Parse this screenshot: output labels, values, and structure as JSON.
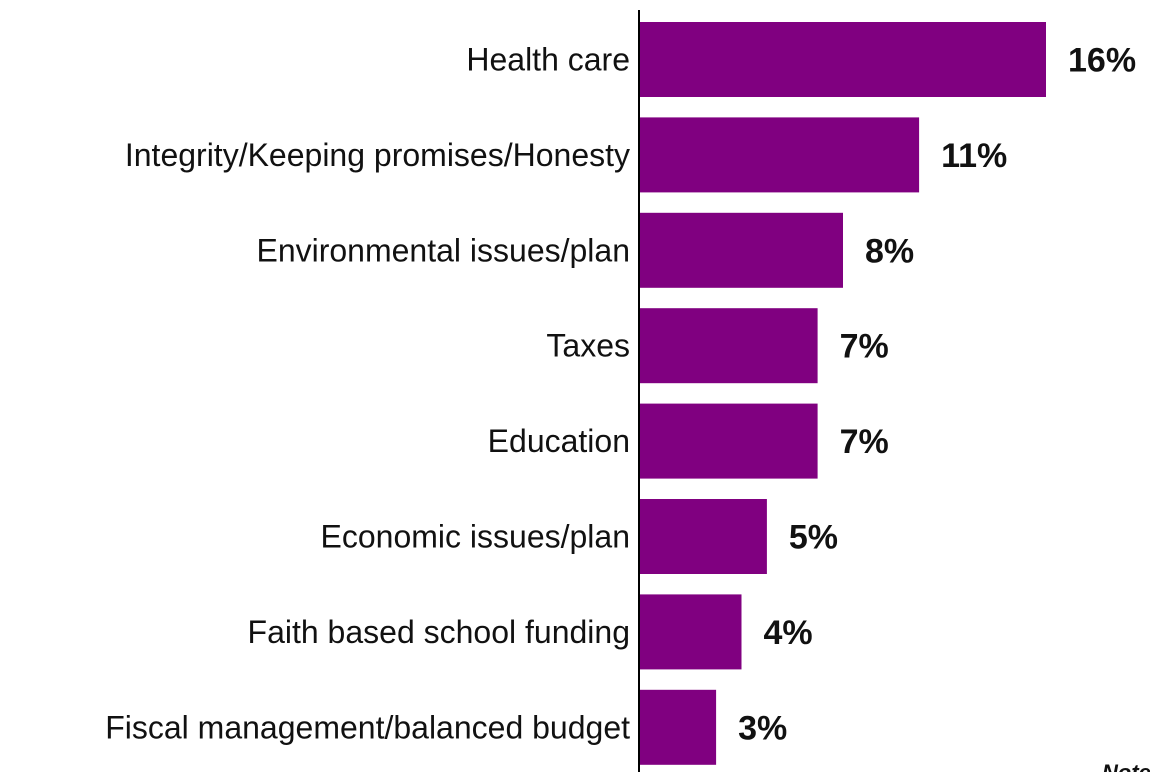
{
  "chart_data": {
    "type": "bar",
    "orientation": "horizontal",
    "categories": [
      "Health care",
      "Integrity/Keeping promises/Honesty",
      "Environmental issues/plan",
      "Taxes",
      "Education",
      "Economic issues/plan",
      "Faith based school funding",
      "Fiscal management/balanced budget"
    ],
    "values": [
      16,
      11,
      8,
      7,
      7,
      5,
      4,
      3
    ],
    "value_labels": [
      "16%",
      "11%",
      "8%",
      "7%",
      "7%",
      "5%",
      "4%",
      "3%"
    ],
    "xlim": [
      0,
      16
    ],
    "grid": false,
    "legend": "none",
    "bar_color": "#800080",
    "axis_color": "#000000"
  },
  "footnote": "Note"
}
